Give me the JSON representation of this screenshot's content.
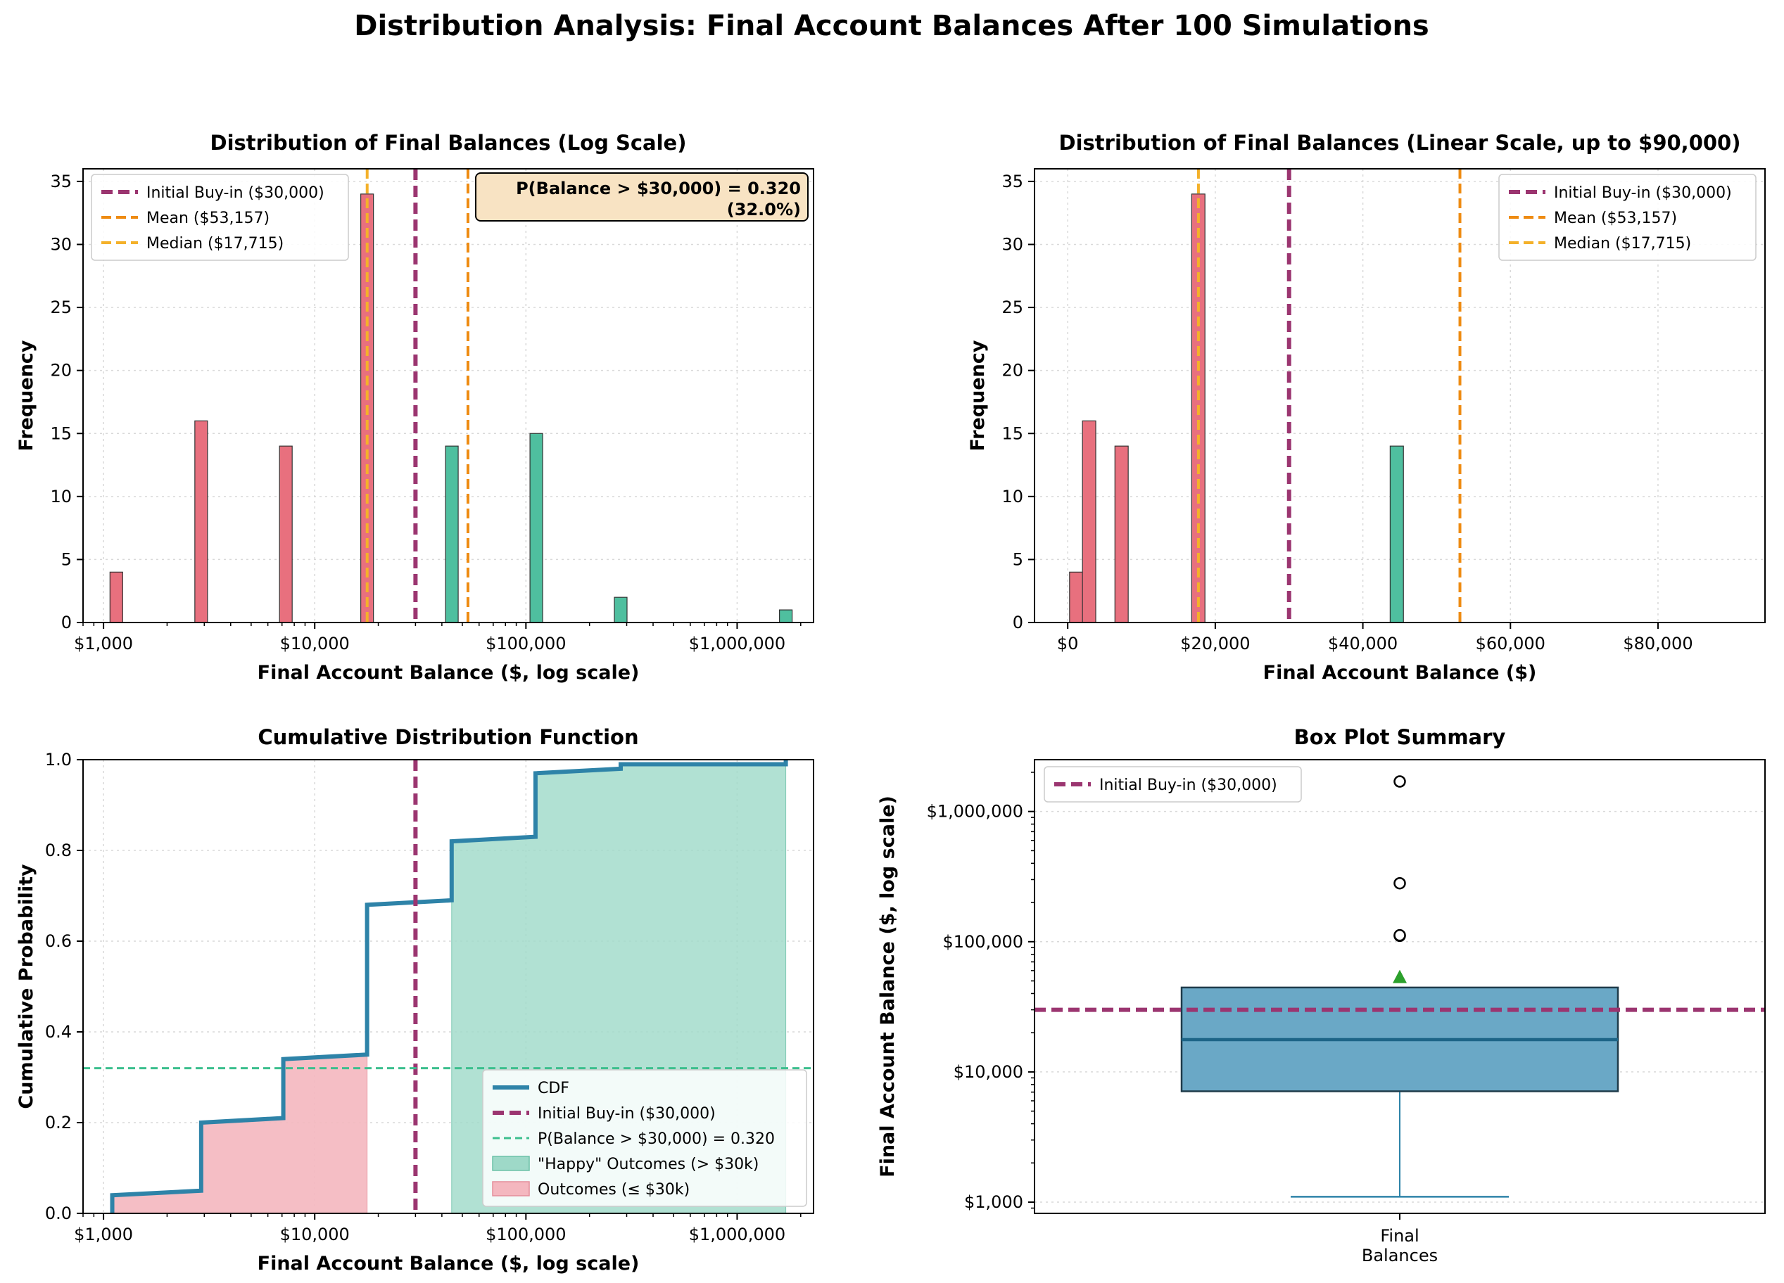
{
  "title": "Distribution Analysis: Final Account Balances After 100 Simulations",
  "colors": {
    "loss": "#e8707e",
    "gain": "#4fbf9f",
    "buyin": "#9b3570",
    "mean": "#ee8b12",
    "median": "#f4b12a",
    "cdf": "#2e83a8",
    "threshold": "#3cbf8e",
    "happy_fill": "#9ed9c8",
    "low_fill": "#f4b7bf",
    "box": "#6aa8c6",
    "mean_marker": "#2ca02c",
    "annot_bg": "#f8e3c3"
  },
  "chart_data": [
    {
      "id": "hist_log",
      "type": "bar",
      "title": "Distribution of Final Balances (Log Scale)",
      "xlabel": "Final Account Balance ($, log scale)",
      "ylabel": "Frequency",
      "xscale": "log",
      "xlim": [
        800,
        2300000
      ],
      "ylim": [
        0,
        36
      ],
      "xticks": [
        1000,
        10000,
        100000,
        1000000
      ],
      "xtick_labels": [
        "$1,000",
        "$10,000",
        "$100,000",
        "$1,000,000"
      ],
      "yticks": [
        0,
        5,
        10,
        15,
        20,
        25,
        30,
        35
      ],
      "bin_width_log10": 0.06,
      "bars": [
        {
          "x": 1150,
          "value": 4,
          "group": "loss"
        },
        {
          "x": 2900,
          "value": 16,
          "group": "loss"
        },
        {
          "x": 7300,
          "value": 14,
          "group": "loss"
        },
        {
          "x": 17700,
          "value": 34,
          "group": "loss"
        },
        {
          "x": 44600,
          "value": 14,
          "group": "gain"
        },
        {
          "x": 112000,
          "value": 15,
          "group": "gain"
        },
        {
          "x": 281000,
          "value": 2,
          "group": "gain"
        },
        {
          "x": 1700000,
          "value": 1,
          "group": "gain"
        }
      ],
      "vlines": [
        {
          "x": 30000,
          "style": "buyin"
        },
        {
          "x": 53157,
          "style": "mean"
        },
        {
          "x": 17715,
          "style": "median"
        }
      ],
      "legend": [
        "Initial Buy-in ($30,000)",
        "Mean ($53,157)",
        "Median ($17,715)"
      ],
      "legend_position": "top-left",
      "annotation": [
        "P(Balance > $30,000) = 0.320",
        "(32.0%)"
      ],
      "annotation_position": "top-right",
      "grid": true
    },
    {
      "id": "hist_linear",
      "type": "bar",
      "title": "Distribution of Final Balances (Linear Scale, up to $90,000)",
      "xlabel": "Final Account Balance ($)",
      "ylabel": "Frequency",
      "xscale": "linear",
      "xlim": [
        -4500,
        94500
      ],
      "ylim": [
        0,
        36
      ],
      "xticks": [
        0,
        20000,
        40000,
        60000,
        80000
      ],
      "xtick_labels": [
        "$0",
        "$20,000",
        "$40,000",
        "$60,000",
        "$80,000"
      ],
      "yticks": [
        0,
        5,
        10,
        15,
        20,
        25,
        30,
        35
      ],
      "bin_width": 1800,
      "bars": [
        {
          "x": 1150,
          "value": 4,
          "group": "loss"
        },
        {
          "x": 2900,
          "value": 16,
          "group": "loss"
        },
        {
          "x": 7300,
          "value": 14,
          "group": "loss"
        },
        {
          "x": 17700,
          "value": 34,
          "group": "loss"
        },
        {
          "x": 44600,
          "value": 14,
          "group": "gain"
        }
      ],
      "vlines": [
        {
          "x": 30000,
          "style": "buyin"
        },
        {
          "x": 53157,
          "style": "mean"
        },
        {
          "x": 17715,
          "style": "median"
        }
      ],
      "legend": [
        "Initial Buy-in ($30,000)",
        "Mean ($53,157)",
        "Median ($17,715)"
      ],
      "legend_position": "top-right",
      "grid": true
    },
    {
      "id": "cdf",
      "type": "line",
      "title": "Cumulative Distribution Function",
      "xlabel": "Final Account Balance ($, log scale)",
      "ylabel": "Cumulative Probability",
      "xscale": "log",
      "xlim": [
        800,
        2300000
      ],
      "ylim": [
        0,
        1
      ],
      "xticks": [
        1000,
        10000,
        100000,
        1000000
      ],
      "xtick_labels": [
        "$1,000",
        "$10,000",
        "$100,000",
        "$1,000,000"
      ],
      "yticks": [
        0,
        0.2,
        0.4,
        0.6,
        0.8,
        1.0
      ],
      "ytick_labels": [
        "0.0",
        "0.2",
        "0.4",
        "0.6",
        "0.8",
        "1.0"
      ],
      "steps": [
        {
          "x": 1100,
          "y": 0.04
        },
        {
          "x": 2900,
          "y": 0.2
        },
        {
          "x": 7100,
          "y": 0.34
        },
        {
          "x": 17700,
          "y": 0.68
        },
        {
          "x": 44500,
          "y": 0.82
        },
        {
          "x": 111000,
          "y": 0.97
        },
        {
          "x": 281000,
          "y": 0.99
        },
        {
          "x": 1700000,
          "y": 1.0
        }
      ],
      "step_end_values": [
        0.05,
        0.21,
        0.35,
        0.69,
        0.83,
        0.98,
        0.99,
        1.0
      ],
      "threshold_y": 0.32,
      "buyin_x": 30000,
      "legend": [
        "CDF",
        "Initial Buy-in ($30,000)",
        "P(Balance > $30,000) = 0.320",
        "\"Happy\" Outcomes (> $30k)",
        "Outcomes (≤ $30k)"
      ],
      "legend_position": "bottom-right",
      "grid": true
    },
    {
      "id": "box",
      "type": "box",
      "title": "Box Plot Summary",
      "xlabel_lines": [
        "Final",
        "Balances"
      ],
      "ylabel": "Final Account Balance ($, log scale)",
      "yscale": "log",
      "ylim": [
        820,
        2500000
      ],
      "yticks": [
        1000,
        10000,
        100000,
        1000000
      ],
      "ytick_labels": [
        "$1,000",
        "$10,000",
        "$100,000",
        "$1,000,000"
      ],
      "whisker_low": 1100,
      "q1": 7100,
      "median": 17715,
      "q3": 44500,
      "mean": 53157,
      "outliers": [
        111000,
        112000,
        281000,
        1700000
      ],
      "buyin": 30000,
      "legend": [
        "Initial Buy-in ($30,000)"
      ],
      "legend_position": "top-left",
      "grid": true
    }
  ]
}
